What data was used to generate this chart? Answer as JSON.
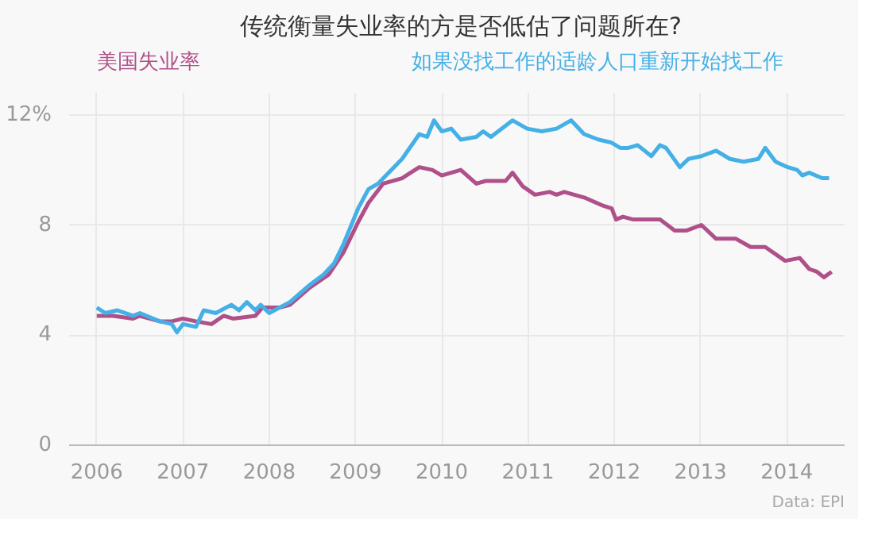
{
  "chart_data": {
    "type": "line",
    "title": "传统衡量失业率的方是否低估了问题所在?",
    "annotations": [
      "Data: EPI"
    ],
    "xlim": [
      2005.68,
      2014.67
    ],
    "xticks": [
      2006,
      2007,
      2008,
      2009,
      2010,
      2011,
      2012,
      2013,
      2014
    ],
    "ylim": [
      0,
      12.8
    ],
    "yticks": [
      0,
      4,
      8,
      {
        "value": 12,
        "label": "12%"
      }
    ],
    "grid": true,
    "legend": "top",
    "line_style": "solid",
    "series": [
      {
        "name": "美国失业率",
        "color": "#b0508a",
        "x": [
          2006.0,
          2006.19,
          2006.42,
          2006.5,
          2006.73,
          2006.87,
          2007.0,
          2007.15,
          2007.33,
          2007.47,
          2007.58,
          2007.84,
          2007.92,
          2008.12,
          2008.24,
          2008.46,
          2008.69,
          2008.86,
          2009.03,
          2009.15,
          2009.32,
          2009.54,
          2009.74,
          2009.89,
          2010.0,
          2010.11,
          2010.22,
          2010.4,
          2010.51,
          2010.74,
          2010.82,
          2010.94,
          2011.08,
          2011.25,
          2011.33,
          2011.42,
          2011.65,
          2011.87,
          2011.97,
          2012.02,
          2012.1,
          2012.22,
          2012.53,
          2012.7,
          2012.84,
          2013.01,
          2013.18,
          2013.41,
          2013.58,
          2013.75,
          2013.98,
          2014.15,
          2014.26,
          2014.35,
          2014.43,
          2014.52
        ],
        "values": [
          4.7,
          4.7,
          4.6,
          4.7,
          4.5,
          4.5,
          4.6,
          4.5,
          4.4,
          4.7,
          4.6,
          4.7,
          5.0,
          5.0,
          5.1,
          5.7,
          6.2,
          7.0,
          8.1,
          8.8,
          9.5,
          9.7,
          10.1,
          10.0,
          9.8,
          9.9,
          10.0,
          9.5,
          9.6,
          9.6,
          9.9,
          9.4,
          9.1,
          9.2,
          9.1,
          9.2,
          9.0,
          8.7,
          8.6,
          8.2,
          8.3,
          8.2,
          8.2,
          7.8,
          7.8,
          8.0,
          7.5,
          7.5,
          7.2,
          7.2,
          6.7,
          6.8,
          6.4,
          6.3,
          6.1,
          6.3
        ]
      },
      {
        "name": "如果没找工作的适龄人口重新开始找工作",
        "color": "#45b0e6",
        "x": [
          2006.0,
          2006.1,
          2006.24,
          2006.42,
          2006.5,
          2006.73,
          2006.87,
          2006.93,
          2007.0,
          2007.15,
          2007.24,
          2007.38,
          2007.56,
          2007.65,
          2007.74,
          2007.84,
          2007.9,
          2008.0,
          2008.24,
          2008.46,
          2008.63,
          2008.75,
          2008.86,
          2009.03,
          2009.15,
          2009.26,
          2009.54,
          2009.74,
          2009.83,
          2009.91,
          2010.0,
          2010.11,
          2010.22,
          2010.4,
          2010.48,
          2010.57,
          2010.82,
          2010.99,
          2011.16,
          2011.33,
          2011.5,
          2011.65,
          2011.82,
          2011.96,
          2012.07,
          2012.16,
          2012.27,
          2012.43,
          2012.53,
          2012.6,
          2012.76,
          2012.86,
          2013.01,
          2013.18,
          2013.34,
          2013.5,
          2013.67,
          2013.75,
          2013.87,
          2014.01,
          2014.12,
          2014.18,
          2014.26,
          2014.41,
          2014.49
        ],
        "values": [
          5.0,
          4.8,
          4.9,
          4.7,
          4.8,
          4.5,
          4.4,
          4.1,
          4.4,
          4.3,
          4.9,
          4.8,
          5.1,
          4.9,
          5.2,
          4.9,
          5.1,
          4.8,
          5.2,
          5.8,
          6.2,
          6.6,
          7.3,
          8.6,
          9.3,
          9.5,
          10.4,
          11.3,
          11.2,
          11.8,
          11.4,
          11.5,
          11.1,
          11.2,
          11.4,
          11.2,
          11.8,
          11.5,
          11.4,
          11.5,
          11.8,
          11.3,
          11.1,
          11.0,
          10.8,
          10.8,
          10.9,
          10.5,
          10.9,
          10.8,
          10.1,
          10.4,
          10.5,
          10.7,
          10.4,
          10.3,
          10.4,
          10.8,
          10.3,
          10.1,
          10.0,
          9.8,
          9.9,
          9.7,
          9.7
        ]
      }
    ]
  }
}
